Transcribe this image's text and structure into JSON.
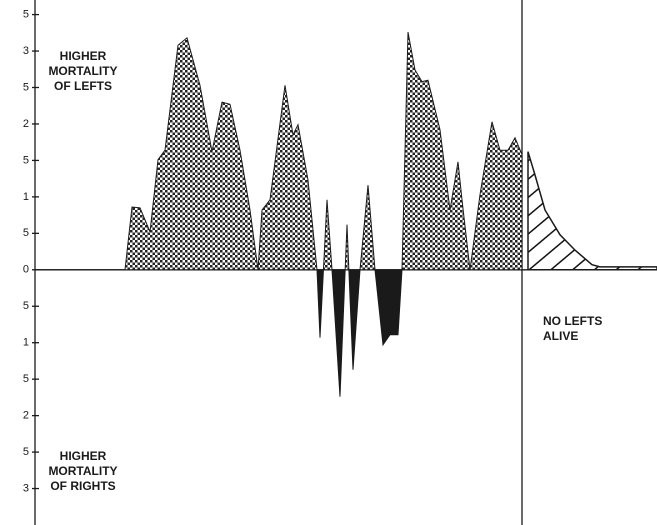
{
  "chart_data": {
    "type": "area",
    "annotations": {
      "lefts": [
        "HIGHER",
        "MORTALITY",
        "OF LEFTS"
      ],
      "rights": [
        "HIGHER",
        "MORTALITY",
        "OF RIGHTS"
      ],
      "none": [
        "NO LEFTS",
        "ALIVE"
      ]
    },
    "xlim": [
      0,
      622
    ],
    "ylim": [
      -3.5,
      3.7
    ],
    "yticks": [
      {
        "value": 3.5,
        "label": "5"
      },
      3,
      {
        "value": 2.5,
        "label": "5"
      },
      2,
      {
        "value": 1.5,
        "label": "5"
      },
      1,
      {
        "value": 0.5,
        "label": "5"
      },
      0,
      {
        "value": -0.5,
        "label": "5"
      },
      {
        "value": -1,
        "label": "1"
      },
      {
        "value": -1.5,
        "label": "5"
      },
      {
        "value": -2,
        "label": "2"
      },
      {
        "value": -2.5,
        "label": "5"
      },
      {
        "value": -3,
        "label": "3"
      }
    ],
    "series": [
      {
        "color": "#1a1a1a",
        "x": [
          0,
          90,
          97,
          105,
          115,
          123,
          130,
          143,
          152,
          165,
          177,
          187,
          195,
          205,
          215,
          223,
          227,
          235,
          250,
          258,
          263,
          273,
          282,
          285,
          292,
          297,
          305,
          312,
          318,
          325,
          333,
          340,
          348,
          355,
          363,
          367,
          373,
          380,
          387,
          393,
          405,
          415,
          423,
          427,
          435,
          445,
          457,
          465,
          473,
          480,
          487
        ],
        "values": [
          0,
          0,
          0.86,
          0.85,
          0.52,
          1.51,
          1.64,
          3.08,
          3.18,
          2.53,
          1.62,
          2.3,
          2.27,
          1.64,
          0.82,
          0,
          0.82,
          0.96,
          2.53,
          1.85,
          1.99,
          1.23,
          0,
          -0.93,
          0.96,
          0,
          -1.74,
          0.62,
          -1.37,
          0,
          1.16,
          0,
          -1.03,
          -0.89,
          -0.89,
          0,
          3.26,
          2.74,
          2.58,
          2.6,
          1.92,
          0.82,
          1.48,
          0.96,
          0,
          1.03,
          2.03,
          1.64,
          1.64,
          1.81,
          1.58
        ]
      },
      {
        "color": "#1a1a1a",
        "x": [
          493,
          500,
          510,
          525,
          540,
          557,
          565,
          622
        ],
        "values": [
          1.62,
          1.3,
          0.82,
          0.48,
          0.27,
          0.07,
          0.04,
          0.04
        ]
      }
    ]
  }
}
